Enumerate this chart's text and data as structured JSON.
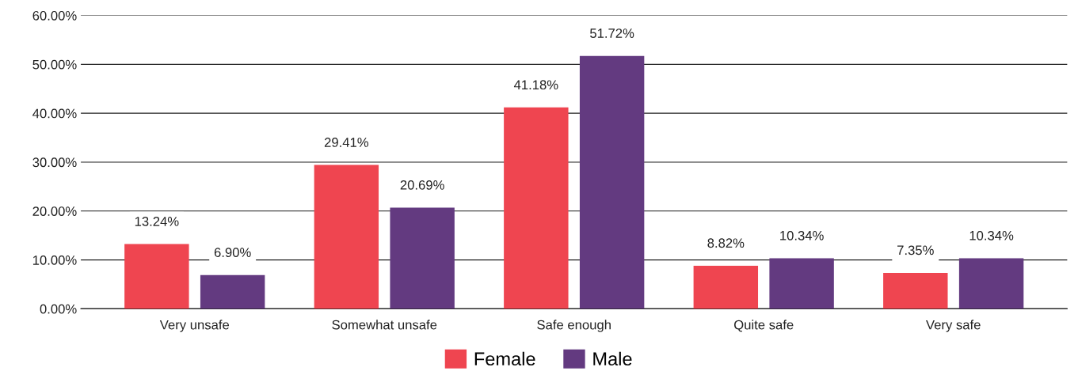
{
  "chart_data": {
    "type": "bar",
    "categories": [
      "Very unsafe",
      "Somewhat unsafe",
      "Safe enough",
      "Quite safe",
      "Very safe"
    ],
    "series": [
      {
        "name": "Female",
        "color": "#ef4550",
        "values": [
          13.24,
          29.41,
          41.18,
          8.82,
          7.35
        ],
        "value_labels": [
          "13.24%",
          "29.41%",
          "41.18%",
          "8.82%",
          "7.35%"
        ]
      },
      {
        "name": "Male",
        "color": "#633a80",
        "values": [
          6.9,
          20.69,
          51.72,
          10.34,
          10.34
        ],
        "value_labels": [
          "6.90%",
          "20.69%",
          "51.72%",
          "10.34%",
          "10.34%"
        ]
      }
    ],
    "ylim": [
      0,
      60
    ],
    "yticks": [
      {
        "value": 0,
        "label": "0.00%"
      },
      {
        "value": 10,
        "label": "10.00%"
      },
      {
        "value": 20,
        "label": "20.00%"
      },
      {
        "value": 30,
        "label": "30.00%"
      },
      {
        "value": 40,
        "label": "40.00%"
      },
      {
        "value": 50,
        "label": "50.00%"
      },
      {
        "value": 60,
        "label": "60.00%"
      }
    ],
    "grid": "y",
    "legend": "bottom"
  }
}
